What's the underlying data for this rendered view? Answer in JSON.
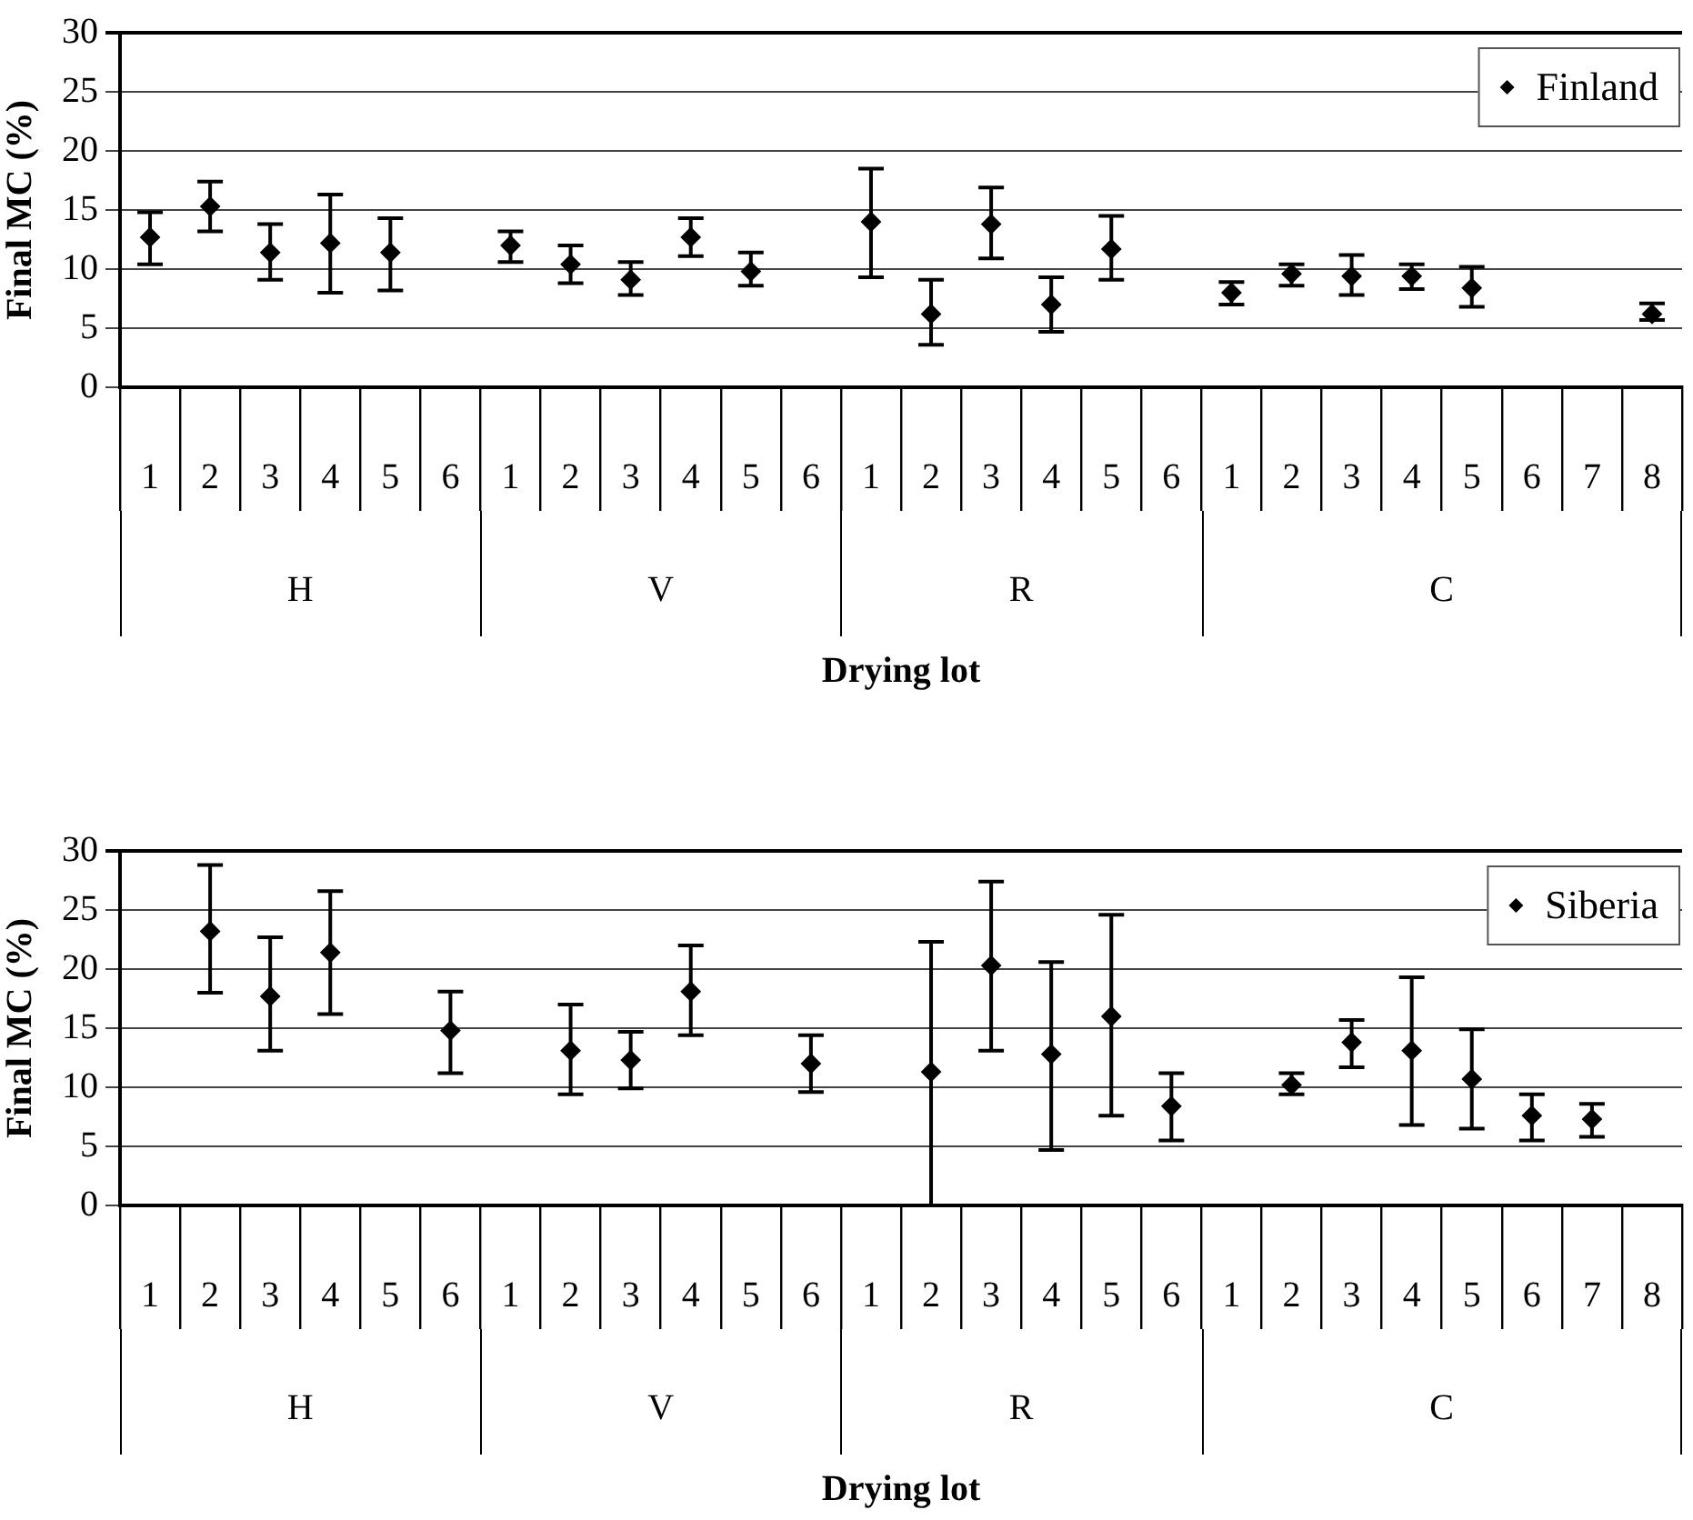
{
  "chart_data": [
    {
      "type": "scatter",
      "xlabel": "Drying lot",
      "ylabel": "Final MC (%)",
      "categories": [
        "1",
        "2",
        "3",
        "4",
        "5",
        "6",
        "1",
        "2",
        "3",
        "4",
        "5",
        "6",
        "1",
        "2",
        "3",
        "4",
        "5",
        "6",
        "1",
        "2",
        "3",
        "4",
        "5",
        "6",
        "7",
        "8"
      ],
      "annotations": [
        "H",
        "V",
        "R",
        "C"
      ],
      "series": [
        {
          "name": "Finland",
          "color": "#000000",
          "values": [
            12.7,
            15.3,
            11.4,
            12.2,
            11.4,
            null,
            12.0,
            10.4,
            9.1,
            12.7,
            9.8,
            null,
            14.0,
            6.2,
            13.8,
            7.0,
            11.7,
            null,
            8.0,
            9.6,
            9.4,
            9.4,
            8.4,
            null,
            null,
            6.2
          ],
          "errors": [
            [
              10.4,
              14.8
            ],
            [
              13.2,
              17.4
            ],
            [
              9.1,
              13.8
            ],
            [
              8.0,
              16.3
            ],
            [
              8.2,
              14.3
            ],
            null,
            [
              10.6,
              13.2
            ],
            [
              8.8,
              12.0
            ],
            [
              7.8,
              10.6
            ],
            [
              11.1,
              14.3
            ],
            [
              8.6,
              11.4
            ],
            null,
            [
              9.3,
              18.5
            ],
            [
              3.6,
              9.1
            ],
            [
              10.9,
              16.9
            ],
            [
              4.7,
              9.3
            ],
            [
              9.1,
              14.5
            ],
            null,
            [
              7.0,
              8.9
            ],
            [
              8.6,
              10.4
            ],
            [
              7.8,
              11.2
            ],
            [
              8.3,
              10.4
            ],
            [
              6.8,
              10.2
            ],
            null,
            null,
            [
              5.7,
              7.1
            ]
          ]
        }
      ],
      "ylim": [
        0,
        30
      ],
      "yticks": [
        0,
        5,
        10,
        15,
        20,
        25,
        30
      ],
      "grid": "y",
      "legend": "top right",
      "marker": "diamond"
    },
    {
      "type": "scatter",
      "xlabel": "Drying lot",
      "ylabel": "Final MC (%)",
      "categories": [
        "1",
        "2",
        "3",
        "4",
        "5",
        "6",
        "1",
        "2",
        "3",
        "4",
        "5",
        "6",
        "1",
        "2",
        "3",
        "4",
        "5",
        "6",
        "1",
        "2",
        "3",
        "4",
        "5",
        "6",
        "7",
        "8"
      ],
      "annotations": [
        "H",
        "V",
        "R",
        "C"
      ],
      "series": [
        {
          "name": "Siberia",
          "color": "#000000",
          "values": [
            null,
            23.2,
            17.7,
            21.4,
            null,
            14.8,
            null,
            13.1,
            12.3,
            18.1,
            null,
            12.0,
            null,
            11.3,
            20.3,
            12.8,
            16.0,
            8.4,
            null,
            10.2,
            13.8,
            13.1,
            10.7,
            7.6,
            7.3,
            null
          ],
          "errors": [
            null,
            [
              18.0,
              28.8
            ],
            [
              13.1,
              22.7
            ],
            [
              16.2,
              26.6
            ],
            null,
            [
              11.2,
              18.1
            ],
            null,
            [
              9.4,
              17.0
            ],
            [
              9.9,
              14.7
            ],
            [
              14.4,
              22.0
            ],
            null,
            [
              9.6,
              14.4
            ],
            null,
            [
              0,
              22.3
            ],
            [
              13.1,
              27.4
            ],
            [
              4.7,
              20.6
            ],
            [
              7.6,
              24.6
            ],
            [
              5.5,
              11.2
            ],
            null,
            [
              9.4,
              11.2
            ],
            [
              11.7,
              15.7
            ],
            [
              6.8,
              19.3
            ],
            [
              6.5,
              14.9
            ],
            [
              5.5,
              9.4
            ],
            [
              5.8,
              8.6
            ],
            null
          ]
        }
      ],
      "ylim": [
        0,
        30
      ],
      "yticks": [
        0,
        5,
        10,
        15,
        20,
        25,
        30
      ],
      "grid": "y",
      "legend": "top right",
      "marker": "diamond"
    }
  ]
}
